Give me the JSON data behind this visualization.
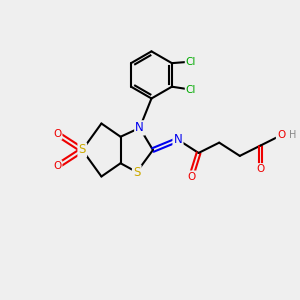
{
  "bg_color": "#efefef",
  "atom_colors": {
    "C": "#000000",
    "N": "#0000ee",
    "O": "#ee0000",
    "S": "#ccaa00",
    "Cl": "#00aa00",
    "H": "#888888"
  },
  "bond_color": "#000000",
  "bond_width": 1.5
}
